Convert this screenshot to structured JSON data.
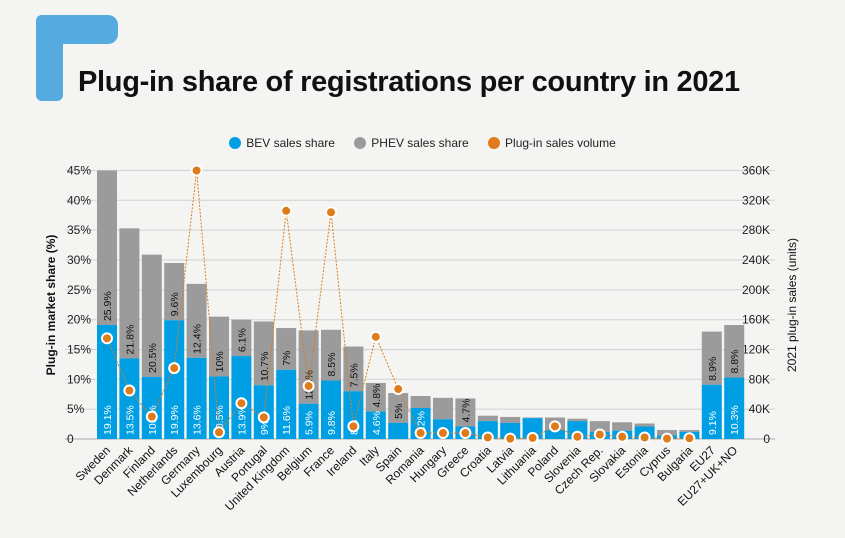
{
  "title": "Plug-in share of registrations per country in 2021",
  "colors": {
    "bev": "#009fe3",
    "phev": "#9b9b9b",
    "volume": "#e07b1a",
    "logo": "#55abe0"
  },
  "legend": [
    {
      "label": "BEV sales share",
      "color": "#009fe3"
    },
    {
      "label": "PHEV sales share",
      "color": "#9b9b9b"
    },
    {
      "label": "Plug-in sales volume",
      "color": "#e07b1a"
    }
  ],
  "chart_data": {
    "type": "bar",
    "stacked": true,
    "title": "Plug-in share of registrations per country in 2021",
    "ylabel": "Plug-in market share (%)",
    "y2label": "2021 plug-in sales (units)",
    "ylim": [
      0,
      45
    ],
    "y2lim": [
      0,
      360000
    ],
    "yticks": [
      "0",
      "5%",
      "10%",
      "15%",
      "20%",
      "25%",
      "30%",
      "35%",
      "40%",
      "45%"
    ],
    "y2ticks": [
      "0",
      "40K",
      "80K",
      "120K",
      "160K",
      "200K",
      "240K",
      "280K",
      "320K",
      "360K"
    ],
    "grid": true,
    "legend_position": "top",
    "categories": [
      "Sweden",
      "Denmark",
      "Finland",
      "Netherlands",
      "Germany",
      "Luxembourg",
      "Austria",
      "Portugal",
      "United Kingdom",
      "Belgium",
      "France",
      "Ireland",
      "Italy",
      "Spain",
      "Romania",
      "Hungary",
      "Greece",
      "Croatia",
      "Latvia",
      "Lithuania",
      "Poland",
      "Slovenia",
      "Czech Rep.",
      "Slovakia",
      "Estonia",
      "Cyprus",
      "Bulgaria",
      "EU27",
      "EU27+UK+NO"
    ],
    "series": [
      {
        "name": "BEV sales share",
        "type": "bar",
        "values": [
          19.1,
          13.5,
          10.4,
          19.9,
          13.6,
          10.5,
          13.9,
          9,
          11.6,
          5.9,
          9.8,
          8,
          4.6,
          2.7,
          5.2,
          3.3,
          2.1,
          3.0,
          2.7,
          3.5,
          1.5,
          3.0,
          1.2,
          1.4,
          2.1,
          0.6,
          1.2,
          9.1,
          10.3
        ],
        "labels": [
          "19.1%",
          "13.5%",
          "10.4%",
          "19.9%",
          "13.6%",
          "10.5%",
          "13.9%",
          "9%",
          "11.6%",
          "5.9%",
          "9.8%",
          "8%",
          "4.6%",
          "",
          "5.2%",
          "",
          "",
          "",
          "",
          "",
          "",
          "",
          "",
          "",
          "",
          "",
          "",
          "9.1%",
          "10.3%"
        ]
      },
      {
        "name": "PHEV sales share",
        "type": "bar",
        "values": [
          25.9,
          21.8,
          20.5,
          9.6,
          12.4,
          10,
          6.1,
          10.7,
          7,
          12.3,
          8.5,
          7.5,
          4.8,
          5,
          2.0,
          3.6,
          4.7,
          0.9,
          1.0,
          0.1,
          2.1,
          0.4,
          1.8,
          1.4,
          0.5,
          0.9,
          0.3,
          8.9,
          8.8
        ],
        "labels": [
          "25.9%",
          "21.8%",
          "20.5%",
          "9.6%",
          "12.4%",
          "10%",
          "6.1%",
          "10.7%",
          "7%",
          "12.3%",
          "8.5%",
          "7.5%",
          "4.8%",
          "5%",
          "",
          "",
          "4.7%",
          "",
          "",
          "",
          "",
          "",
          "",
          "",
          "",
          "",
          "",
          "8.9%",
          "8.8%"
        ]
      },
      {
        "name": "Plug-in sales volume",
        "type": "line",
        "axis": "right",
        "values": [
          135000,
          65000,
          30000,
          95000,
          360000,
          9000,
          48000,
          29000,
          306000,
          71000,
          304000,
          17000,
          137000,
          67000,
          8000,
          8000,
          8000,
          2000,
          500,
          1500,
          17000,
          3000,
          6000,
          3000,
          2000,
          500,
          1000,
          null,
          null
        ]
      }
    ]
  }
}
